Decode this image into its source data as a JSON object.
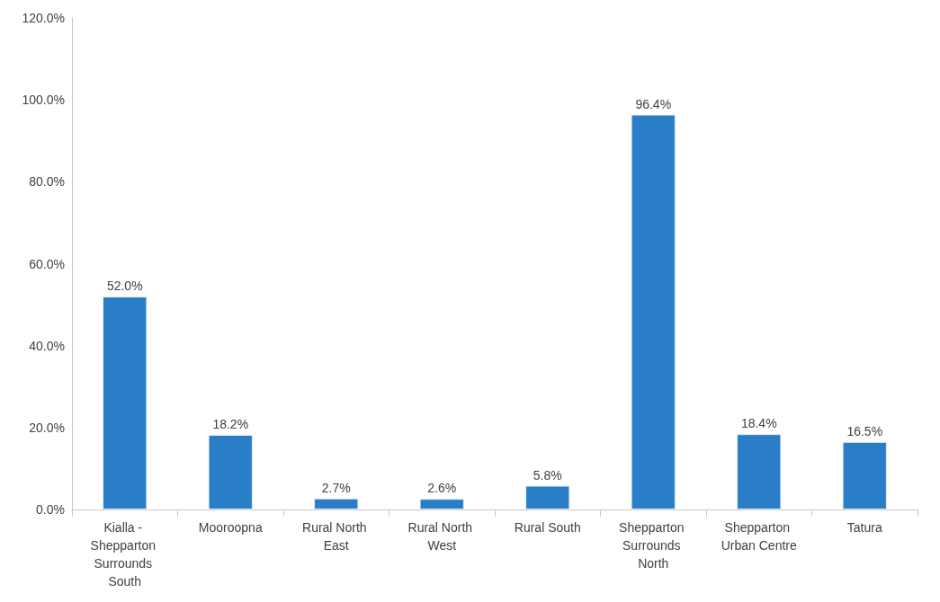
{
  "chart_data": {
    "type": "bar",
    "categories": [
      "Kialla - Shepparton Surrounds South",
      "Mooroopna",
      "Rural North East",
      "Rural North West",
      "Rural South",
      "Shepparton Surrounds North",
      "Shepparton Urban Centre",
      "Tatura"
    ],
    "values": [
      52.0,
      18.2,
      2.7,
      2.6,
      5.8,
      96.4,
      18.4,
      16.5
    ],
    "value_labels": [
      "52.0%",
      "18.2%",
      "2.7%",
      "2.6%",
      "5.8%",
      "96.4%",
      "18.4%",
      "16.5%"
    ],
    "color": "#2a7ec8",
    "ylim": [
      0,
      120
    ],
    "yticks": [
      {
        "value": 0,
        "label": "0.0%"
      },
      {
        "value": 20,
        "label": "20.0%"
      },
      {
        "value": 40,
        "label": "40.0%"
      },
      {
        "value": 60,
        "label": "60.0%"
      },
      {
        "value": 80,
        "label": "80.0%"
      },
      {
        "value": 100,
        "label": "100.0%"
      },
      {
        "value": 120,
        "label": "120.0%"
      }
    ],
    "grid": false
  }
}
